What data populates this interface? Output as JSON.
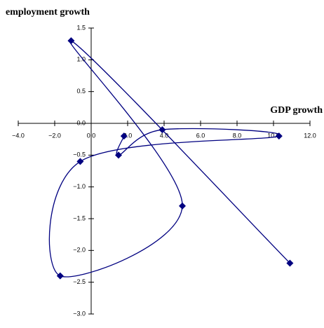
{
  "chart_data": {
    "type": "scatter",
    "x_label": "GDP growth",
    "y_label": "employment growth",
    "xlim": [
      -4,
      12
    ],
    "ylim": [
      -3,
      1.5
    ],
    "xticks": [
      {
        "value": -4,
        "label": "−4.0"
      },
      {
        "value": -2,
        "label": "−2.0"
      },
      {
        "value": 0,
        "label": "0.0"
      },
      {
        "value": 2,
        "label": "2.0"
      },
      {
        "value": 4,
        "label": "4.0"
      },
      {
        "value": 6,
        "label": "6.0"
      },
      {
        "value": 8,
        "label": "8.0"
      },
      {
        "value": 10,
        "label": "10.0"
      },
      {
        "value": 12,
        "label": "12.0"
      }
    ],
    "yticks": [
      1.5,
      {
        "value": 1,
        "label": "1.0"
      },
      0.5,
      {
        "value": 0,
        "label": "0.0"
      },
      {
        "value": -0.5,
        "label": "−0.5"
      },
      {
        "value": -1,
        "label": "−1.0"
      },
      {
        "value": -1.5,
        "label": "−1.5"
      },
      {
        "value": -2,
        "label": "−2.0"
      },
      {
        "value": -2.5,
        "label": "−2.5"
      },
      {
        "value": -3,
        "label": "−3.0"
      }
    ],
    "series": [
      {
        "color": "#000080",
        "x": [
          1.8,
          1.5,
          3.9,
          10.3,
          -0.6,
          -1.7,
          5.0,
          -1.1,
          10.9
        ],
        "values": [
          -0.2,
          -0.5,
          -0.1,
          -0.2,
          -0.6,
          -2.4,
          -1.3,
          1.3,
          -2.2
        ]
      }
    ]
  }
}
